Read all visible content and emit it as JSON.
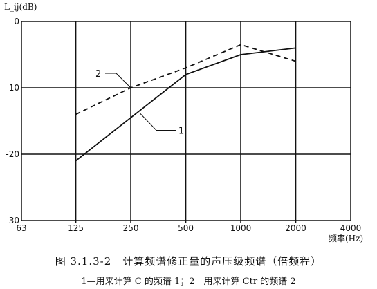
{
  "chart_data": {
    "type": "line",
    "ylabel": "L_ij(dB)",
    "xlabel": "频率(Hz)",
    "x_scale": "log2",
    "x": [
      125,
      250,
      500,
      1000,
      2000
    ],
    "x_ticks": [
      63,
      125,
      250,
      500,
      1000,
      2000,
      4000
    ],
    "x_tick_labels": [
      "63",
      "125",
      "250",
      "500",
      "1000",
      "2000",
      "4000"
    ],
    "xlim": [
      63,
      4000
    ],
    "ylim": [
      -30,
      0
    ],
    "y_ticks": [
      0,
      -10,
      -20,
      -30
    ],
    "y_tick_labels": [
      "0",
      "-10",
      "-20",
      "-30"
    ],
    "grid": true,
    "series": [
      {
        "name": "1",
        "style": "solid",
        "color": "#111111",
        "values": [
          -21,
          -14.5,
          -8,
          -5,
          -4
        ]
      },
      {
        "name": "2",
        "style": "dashed",
        "color": "#111111",
        "values": [
          -14,
          -10,
          -7,
          -3.5,
          -6
        ]
      }
    ]
  },
  "caption": {
    "title": "图 3.1.3-2　计算频谱修正量的声压级频谱（倍频程）",
    "note": "1—用来计算 C 的频谱 1；2　用来计算 Ctr 的频谱 2"
  }
}
